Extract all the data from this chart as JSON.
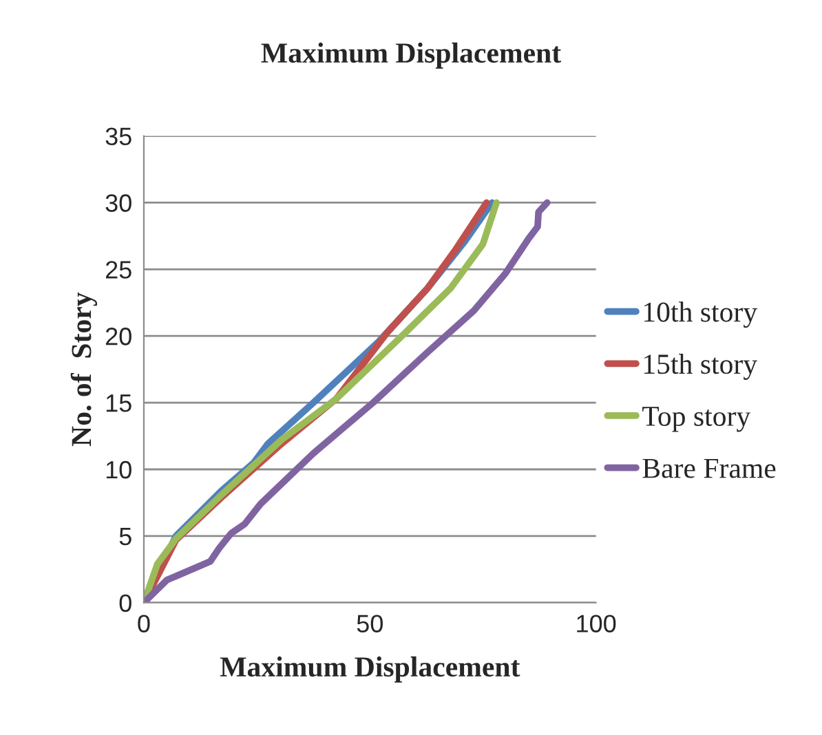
{
  "chart_data": {
    "type": "line",
    "title": "Maximum Displacement",
    "xlabel": "Maximum Displacement",
    "ylabel": "No. of  Story",
    "xlim": [
      0,
      100
    ],
    "xticks": [
      0,
      50,
      100
    ],
    "ylim": [
      0,
      35
    ],
    "yticks": [
      0,
      5,
      10,
      15,
      20,
      25,
      30,
      35
    ],
    "grid": "y",
    "legend": "right",
    "marker": "none",
    "line_style": "solid",
    "series": [
      {
        "name": "10th story",
        "color": "#4f81bd",
        "x": [
          0,
          7.1,
          17.2,
          24.3,
          27.4,
          37.5,
          51.7,
          62.8,
          71,
          77
        ],
        "values": [
          0,
          5,
          8.4,
          10.5,
          11.9,
          15,
          19.5,
          23.6,
          27.1,
          30
        ]
      },
      {
        "name": "15th story",
        "color": "#c0504d",
        "x": [
          0,
          7.1,
          17.2,
          30.4,
          42.6,
          53.7,
          62.8,
          68.8,
          75.8
        ],
        "values": [
          0,
          4.7,
          7.9,
          11.9,
          15.3,
          20.2,
          23.6,
          26.4,
          30
        ]
      },
      {
        "name": "Top story",
        "color": "#9bbb59",
        "x": [
          0,
          3,
          7.1,
          17.2,
          30.4,
          42.6,
          57.7,
          67.9,
          75,
          78
        ],
        "values": [
          0,
          2.9,
          4.8,
          8.1,
          12.2,
          15.3,
          20.2,
          23.6,
          26.9,
          30
        ]
      },
      {
        "name": "Bare Frame",
        "color": "#8064a2",
        "x": [
          0,
          5.1,
          14.7,
          16.7,
          19.3,
          22.3,
          25.8,
          37.5,
          50.7,
          62.8,
          73,
          80,
          85.1,
          87.1,
          87.3,
          89.2
        ],
        "values": [
          0,
          1.7,
          3.1,
          4.1,
          5.2,
          5.9,
          7.4,
          11.2,
          15,
          18.8,
          21.9,
          24.7,
          27.3,
          28.2,
          29.3,
          30
        ]
      }
    ]
  }
}
